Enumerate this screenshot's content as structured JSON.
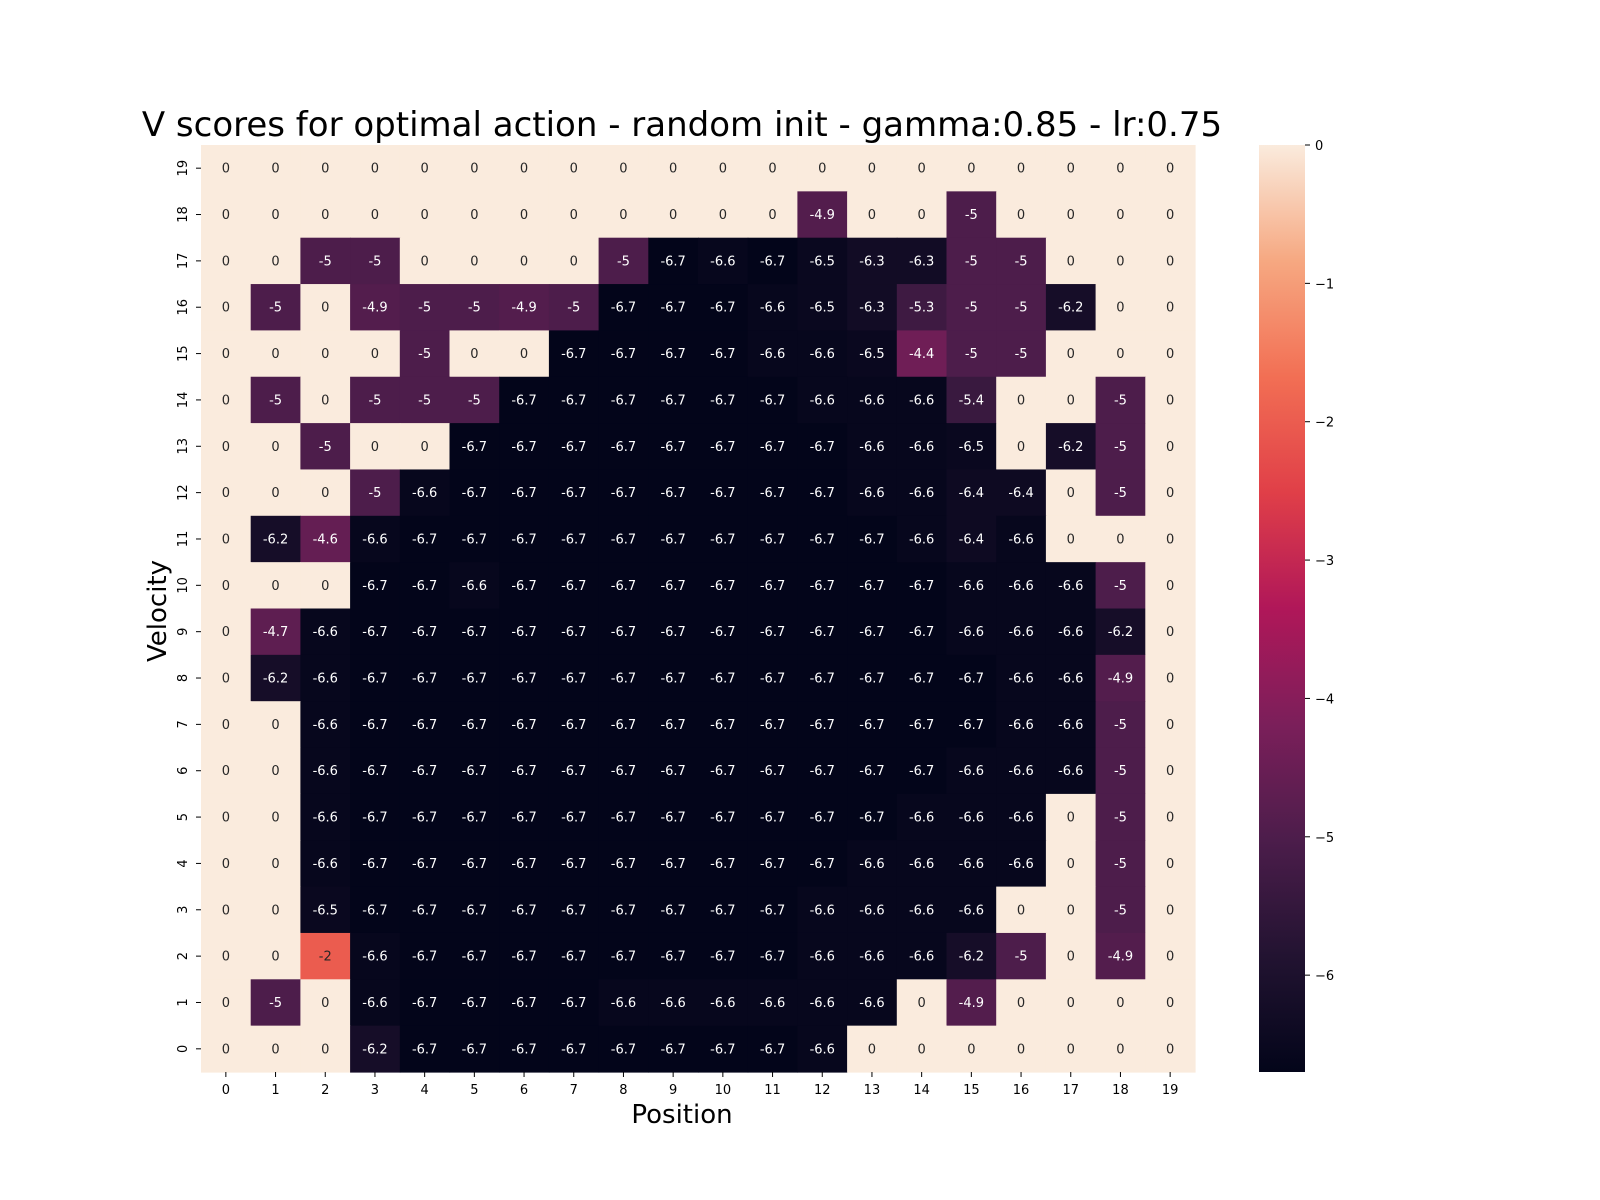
{
  "chart_data": {
    "type": "heatmap",
    "title": "V scores for optimal action - random init - gamma:0.85 - lr:0.75",
    "xlabel": "Position",
    "ylabel": "Velocity",
    "x_categories": [
      "0",
      "1",
      "2",
      "3",
      "4",
      "5",
      "6",
      "7",
      "8",
      "9",
      "10",
      "11",
      "12",
      "13",
      "14",
      "15",
      "16",
      "17",
      "18",
      "19"
    ],
    "y_categories": [
      "19",
      "18",
      "17",
      "16",
      "15",
      "14",
      "13",
      "12",
      "11",
      "10",
      "9",
      "8",
      "7",
      "6",
      "5",
      "4",
      "3",
      "2",
      "1",
      "0"
    ],
    "values": [
      [
        0,
        0,
        0,
        0,
        0,
        0,
        0,
        0,
        0,
        0,
        0,
        0,
        0,
        0,
        0,
        0,
        0,
        0,
        0,
        0
      ],
      [
        0,
        0,
        0,
        0,
        0,
        0,
        0,
        0,
        0,
        0,
        0,
        0,
        -4.9,
        0,
        0,
        -5,
        0,
        0,
        0,
        0
      ],
      [
        0,
        0,
        -5,
        -5,
        0,
        0,
        0,
        0,
        -5,
        -6.7,
        -6.6,
        -6.7,
        -6.5,
        -6.3,
        -6.3,
        -5,
        -5,
        0,
        0,
        0
      ],
      [
        0,
        -5,
        0,
        -4.9,
        -5,
        -5,
        -4.9,
        -5,
        -6.7,
        -6.7,
        -6.7,
        -6.6,
        -6.5,
        -6.3,
        -5.3,
        -5,
        -5,
        -6.2,
        0,
        0
      ],
      [
        0,
        0,
        0,
        0,
        -5,
        0,
        0,
        -6.7,
        -6.7,
        -6.7,
        -6.7,
        -6.6,
        -6.6,
        -6.5,
        -4.4,
        -5,
        -5,
        0,
        0,
        0
      ],
      [
        0,
        -5,
        0,
        -5,
        -5,
        -5,
        -6.7,
        -6.7,
        -6.7,
        -6.7,
        -6.7,
        -6.7,
        -6.6,
        -6.6,
        -6.6,
        -5.4,
        0,
        0,
        -5,
        0
      ],
      [
        0,
        0,
        -5,
        0,
        0,
        -6.7,
        -6.7,
        -6.7,
        -6.7,
        -6.7,
        -6.7,
        -6.7,
        -6.7,
        -6.6,
        -6.6,
        -6.5,
        0,
        -6.2,
        -5,
        0
      ],
      [
        0,
        0,
        0,
        -5,
        -6.6,
        -6.7,
        -6.7,
        -6.7,
        -6.7,
        -6.7,
        -6.7,
        -6.7,
        -6.7,
        -6.6,
        -6.6,
        -6.4,
        -6.4,
        0,
        -5,
        0
      ],
      [
        0,
        -6.2,
        -4.6,
        -6.6,
        -6.7,
        -6.7,
        -6.7,
        -6.7,
        -6.7,
        -6.7,
        -6.7,
        -6.7,
        -6.7,
        -6.7,
        -6.6,
        -6.4,
        -6.6,
        0,
        0,
        0
      ],
      [
        0,
        0,
        0,
        -6.7,
        -6.7,
        -6.6,
        -6.7,
        -6.7,
        -6.7,
        -6.7,
        -6.7,
        -6.7,
        -6.7,
        -6.7,
        -6.7,
        -6.6,
        -6.6,
        -6.6,
        -5,
        0
      ],
      [
        0,
        -4.7,
        -6.6,
        -6.7,
        -6.7,
        -6.7,
        -6.7,
        -6.7,
        -6.7,
        -6.7,
        -6.7,
        -6.7,
        -6.7,
        -6.7,
        -6.7,
        -6.6,
        -6.6,
        -6.6,
        -6.2,
        0
      ],
      [
        0,
        -6.2,
        -6.6,
        -6.7,
        -6.7,
        -6.7,
        -6.7,
        -6.7,
        -6.7,
        -6.7,
        -6.7,
        -6.7,
        -6.7,
        -6.7,
        -6.7,
        -6.7,
        -6.6,
        -6.6,
        -4.9,
        0
      ],
      [
        0,
        0,
        -6.6,
        -6.7,
        -6.7,
        -6.7,
        -6.7,
        -6.7,
        -6.7,
        -6.7,
        -6.7,
        -6.7,
        -6.7,
        -6.7,
        -6.7,
        -6.7,
        -6.6,
        -6.6,
        -5,
        0
      ],
      [
        0,
        0,
        -6.6,
        -6.7,
        -6.7,
        -6.7,
        -6.7,
        -6.7,
        -6.7,
        -6.7,
        -6.7,
        -6.7,
        -6.7,
        -6.7,
        -6.7,
        -6.6,
        -6.6,
        -6.6,
        -5,
        0
      ],
      [
        0,
        0,
        -6.6,
        -6.7,
        -6.7,
        -6.7,
        -6.7,
        -6.7,
        -6.7,
        -6.7,
        -6.7,
        -6.7,
        -6.7,
        -6.7,
        -6.6,
        -6.6,
        -6.6,
        0,
        -5,
        0
      ],
      [
        0,
        0,
        -6.6,
        -6.7,
        -6.7,
        -6.7,
        -6.7,
        -6.7,
        -6.7,
        -6.7,
        -6.7,
        -6.7,
        -6.7,
        -6.6,
        -6.6,
        -6.6,
        -6.6,
        0,
        -5,
        0
      ],
      [
        0,
        0,
        -6.5,
        -6.7,
        -6.7,
        -6.7,
        -6.7,
        -6.7,
        -6.7,
        -6.7,
        -6.7,
        -6.7,
        -6.6,
        -6.6,
        -6.6,
        -6.6,
        0,
        0,
        -5,
        0
      ],
      [
        0,
        0,
        -2,
        -6.6,
        -6.7,
        -6.7,
        -6.7,
        -6.7,
        -6.7,
        -6.7,
        -6.7,
        -6.7,
        -6.6,
        -6.6,
        -6.6,
        -6.2,
        -5,
        0,
        -4.9,
        0
      ],
      [
        0,
        -5,
        0,
        -6.6,
        -6.7,
        -6.7,
        -6.7,
        -6.7,
        -6.6,
        -6.6,
        -6.6,
        -6.6,
        -6.6,
        -6.6,
        0,
        -4.9,
        0,
        0,
        0,
        0
      ],
      [
        0,
        0,
        0,
        -6.2,
        -6.7,
        -6.7,
        -6.7,
        -6.7,
        -6.7,
        -6.7,
        -6.7,
        -6.7,
        -6.6,
        0,
        0,
        0,
        0,
        0,
        0,
        0
      ]
    ],
    "colorbar": {
      "vmin": -6.7,
      "vmax": 0,
      "ticks": [
        0,
        -1,
        -2,
        -3,
        -4,
        -5,
        -6
      ],
      "tick_labels": [
        "0",
        "−1",
        "−2",
        "−3",
        "−4",
        "−5",
        "−6"
      ],
      "colormap": "rocket"
    }
  }
}
